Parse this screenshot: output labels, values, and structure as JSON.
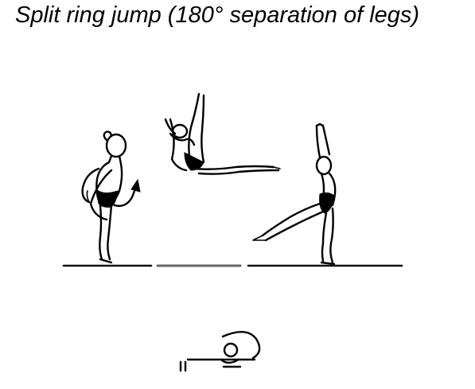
{
  "title": "Split ring jump  (180° separation of legs)",
  "figures": [
    "takeoff-figure-icon",
    "split-ring-jump-figure-icon",
    "landing-figure-icon"
  ],
  "symbol": "split-ring-jump-symbol-icon"
}
